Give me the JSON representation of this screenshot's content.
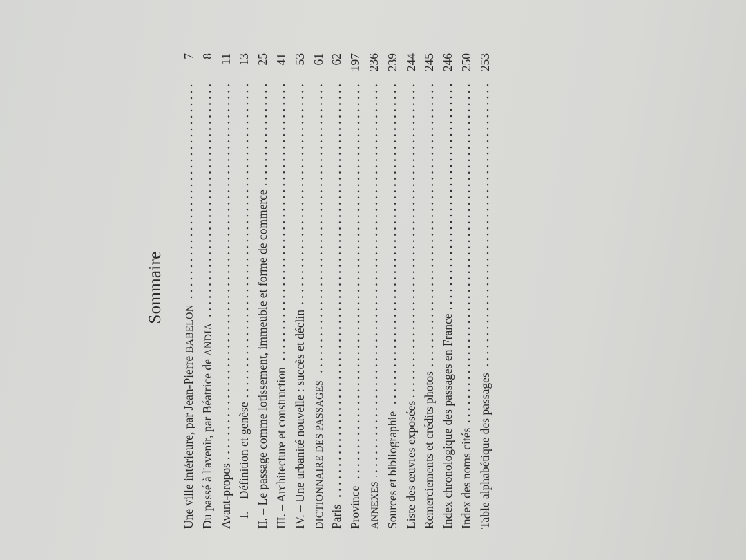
{
  "title": "Sommaire",
  "entries": [
    {
      "text": "Une ville intérieure, par Jean-Pierre ",
      "sc": "BABELON",
      "page": "7"
    },
    {
      "text": "Du passé à l'avenir, par Béatrice de ",
      "sc": "ANDIA",
      "page": "8"
    },
    {
      "text": "Avant-propos",
      "sc": "",
      "page": "11"
    },
    {
      "text": "I. – Définition et genèse",
      "sc": "",
      "page": "13"
    },
    {
      "text": "II. – Le passage comme lotissement, immeuble et forme de commerce",
      "sc": "",
      "page": "25"
    },
    {
      "text": "III. – Architecture et construction",
      "sc": "",
      "page": "41"
    },
    {
      "text": "IV. – Une urbanité nouvelle : succès et déclin",
      "sc": "",
      "page": "53"
    },
    {
      "text": "",
      "sc": "DICTIONNAIRE DES PASSAGES",
      "page": "61"
    },
    {
      "text": "Paris",
      "sc": "",
      "page": "62"
    },
    {
      "text": "Province",
      "sc": "",
      "page": "197"
    },
    {
      "text": "",
      "sc": "ANNEXES",
      "page": "236"
    },
    {
      "text": "Sources et bibliographie",
      "sc": "",
      "page": "239"
    },
    {
      "text": "Liste des œuvres exposées",
      "sc": "",
      "page": "244"
    },
    {
      "text": "Remerciements et crédits photos",
      "sc": "",
      "page": "245"
    },
    {
      "text": "Index chronologique des passages en France",
      "sc": "",
      "page": "246"
    },
    {
      "text": "Index des noms cités",
      "sc": "",
      "page": "250"
    },
    {
      "text": "Table alphabétique des passages",
      "sc": "",
      "page": "253"
    }
  ]
}
